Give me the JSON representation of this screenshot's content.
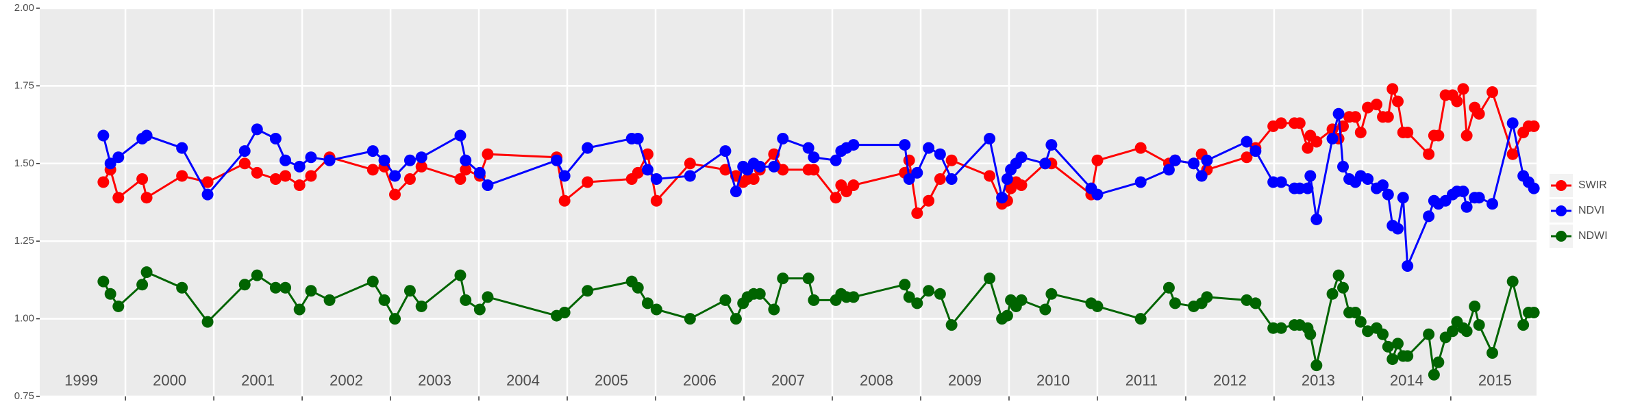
{
  "chart_data": {
    "type": "line",
    "x": [
      1999.75,
      1999.83,
      1999.92,
      2000.19,
      2000.24,
      2000.64,
      2000.93,
      2001.35,
      2001.49,
      2001.7,
      2001.81,
      2001.97,
      2002.1,
      2002.31,
      2002.8,
      2002.93,
      2003.05,
      2003.22,
      2003.35,
      2003.79,
      2003.85,
      2004.01,
      2004.1,
      2004.88,
      2004.97,
      2005.23,
      2005.73,
      2005.8,
      2005.91,
      2006.01,
      2006.39,
      2006.79,
      2006.91,
      2006.99,
      2007.04,
      2007.11,
      2007.18,
      2007.34,
      2007.44,
      2007.73,
      2007.79,
      2008.04,
      2008.1,
      2008.16,
      2008.24,
      2008.82,
      2008.87,
      2008.96,
      2009.09,
      2009.22,
      2009.35,
      2009.78,
      2009.92,
      2009.98,
      2010.02,
      2010.08,
      2010.14,
      2010.41,
      2010.48,
      2010.93,
      2011.0,
      2011.49,
      2011.81,
      2011.88,
      2012.09,
      2012.18,
      2012.24,
      2012.69,
      2012.79,
      2012.99,
      2013.08,
      2013.23,
      2013.29,
      2013.38,
      2013.41,
      2013.48,
      2013.66,
      2013.73,
      2013.78,
      2013.85,
      2013.92,
      2013.98,
      2014.06,
      2014.16,
      2014.23,
      2014.29,
      2014.34,
      2014.4,
      2014.46,
      2014.51,
      2014.75,
      2014.81,
      2014.86,
      2014.94,
      2015.02,
      2015.07,
      2015.14,
      2015.18,
      2015.27,
      2015.32,
      2015.47,
      2015.7,
      2015.82,
      2015.88,
      2015.94
    ],
    "series": [
      {
        "name": "SWIR",
        "color": "#ff0000",
        "values": [
          1.44,
          1.48,
          1.39,
          1.45,
          1.39,
          1.46,
          1.44,
          1.5,
          1.47,
          1.45,
          1.46,
          1.43,
          1.46,
          1.52,
          1.48,
          1.49,
          1.4,
          1.45,
          1.49,
          1.45,
          1.48,
          1.46,
          1.53,
          1.52,
          1.38,
          1.44,
          1.45,
          1.47,
          1.53,
          1.38,
          1.5,
          1.48,
          1.46,
          1.44,
          1.45,
          1.45,
          1.48,
          1.53,
          1.48,
          1.48,
          1.48,
          1.39,
          1.43,
          1.41,
          1.43,
          1.47,
          1.51,
          1.34,
          1.38,
          1.45,
          1.51,
          1.46,
          1.37,
          1.38,
          1.42,
          1.44,
          1.43,
          1.5,
          1.5,
          1.4,
          1.51,
          1.55,
          1.5,
          1.51,
          1.5,
          1.53,
          1.48,
          1.52,
          1.55,
          1.62,
          1.63,
          1.63,
          1.63,
          1.55,
          1.59,
          1.57,
          1.61,
          1.58,
          1.62,
          1.65,
          1.65,
          1.6,
          1.68,
          1.69,
          1.65,
          1.65,
          1.74,
          1.7,
          1.6,
          1.6,
          1.53,
          1.59,
          1.59,
          1.72,
          1.72,
          1.7,
          1.74,
          1.59,
          1.68,
          1.66,
          1.73,
          1.53,
          1.6,
          1.62,
          1.62
        ]
      },
      {
        "name": "NDVI",
        "color": "#0000ff",
        "values": [
          1.59,
          1.5,
          1.52,
          1.58,
          1.59,
          1.55,
          1.4,
          1.54,
          1.61,
          1.58,
          1.51,
          1.49,
          1.52,
          1.51,
          1.54,
          1.51,
          1.46,
          1.51,
          1.52,
          1.59,
          1.51,
          1.47,
          1.43,
          1.51,
          1.46,
          1.55,
          1.58,
          1.58,
          1.48,
          1.45,
          1.46,
          1.54,
          1.41,
          1.49,
          1.48,
          1.5,
          1.49,
          1.49,
          1.58,
          1.55,
          1.52,
          1.51,
          1.54,
          1.55,
          1.56,
          1.56,
          1.45,
          1.47,
          1.55,
          1.53,
          1.45,
          1.58,
          1.39,
          1.45,
          1.48,
          1.5,
          1.52,
          1.5,
          1.56,
          1.42,
          1.4,
          1.44,
          1.48,
          1.51,
          1.5,
          1.46,
          1.51,
          1.57,
          1.54,
          1.44,
          1.44,
          1.42,
          1.42,
          1.42,
          1.46,
          1.32,
          1.58,
          1.66,
          1.49,
          1.45,
          1.44,
          1.46,
          1.45,
          1.42,
          1.43,
          1.4,
          1.3,
          1.29,
          1.39,
          1.17,
          1.33,
          1.38,
          1.37,
          1.38,
          1.4,
          1.41,
          1.41,
          1.36,
          1.39,
          1.39,
          1.37,
          1.63,
          1.46,
          1.44,
          1.42
        ]
      },
      {
        "name": "NDWI",
        "color": "#006400",
        "values": [
          1.12,
          1.08,
          1.04,
          1.11,
          1.15,
          1.1,
          0.99,
          1.11,
          1.14,
          1.1,
          1.1,
          1.03,
          1.09,
          1.06,
          1.12,
          1.06,
          1.0,
          1.09,
          1.04,
          1.14,
          1.06,
          1.03,
          1.07,
          1.01,
          1.02,
          1.09,
          1.12,
          1.1,
          1.05,
          1.03,
          1.0,
          1.06,
          1.0,
          1.05,
          1.07,
          1.08,
          1.08,
          1.03,
          1.13,
          1.13,
          1.06,
          1.06,
          1.08,
          1.07,
          1.07,
          1.11,
          1.07,
          1.05,
          1.09,
          1.08,
          0.98,
          1.13,
          1.0,
          1.01,
          1.06,
          1.04,
          1.06,
          1.03,
          1.08,
          1.05,
          1.04,
          1.0,
          1.1,
          1.05,
          1.04,
          1.05,
          1.07,
          1.06,
          1.05,
          0.97,
          0.97,
          0.98,
          0.98,
          0.97,
          0.95,
          0.85,
          1.08,
          1.14,
          1.1,
          1.02,
          1.02,
          0.99,
          0.96,
          0.97,
          0.95,
          0.91,
          0.87,
          0.92,
          0.88,
          0.88,
          0.95,
          0.82,
          0.86,
          0.94,
          0.96,
          0.99,
          0.97,
          0.96,
          1.04,
          0.98,
          0.89,
          1.12,
          0.98,
          1.02,
          1.02
        ]
      }
    ],
    "xlim": [
      1999.03,
      2015.97
    ],
    "xticks": [
      2000,
      2001,
      2002,
      2003,
      2004,
      2005,
      2006,
      2007,
      2008,
      2009,
      2010,
      2011,
      2012,
      2013,
      2014,
      2015
    ],
    "ylim": [
      0.75,
      2.0
    ],
    "yticks": [
      0.75,
      {
        "value": 1.0,
        "label": "1.00"
      },
      1.25,
      {
        "value": 1.5,
        "label": "1.50"
      },
      1.75,
      {
        "value": 2.0,
        "label": "2.00"
      }
    ],
    "annotations": [
      {
        "x": 1999.5,
        "text": "1999"
      },
      {
        "x": 2000.5,
        "text": "2000"
      },
      {
        "x": 2001.5,
        "text": "2001"
      },
      {
        "x": 2002.5,
        "text": "2002"
      },
      {
        "x": 2003.5,
        "text": "2003"
      },
      {
        "x": 2004.5,
        "text": "2004"
      },
      {
        "x": 2005.5,
        "text": "2005"
      },
      {
        "x": 2006.5,
        "text": "2006"
      },
      {
        "x": 2007.5,
        "text": "2007"
      },
      {
        "x": 2008.5,
        "text": "2008"
      },
      {
        "x": 2009.5,
        "text": "2009"
      },
      {
        "x": 2010.5,
        "text": "2010"
      },
      {
        "x": 2011.5,
        "text": "2011"
      },
      {
        "x": 2012.5,
        "text": "2012"
      },
      {
        "x": 2013.5,
        "text": "2013"
      },
      {
        "x": 2014.5,
        "text": "2014"
      },
      {
        "x": 2015.5,
        "text": "2015"
      }
    ],
    "grid": true,
    "legend": "right"
  }
}
